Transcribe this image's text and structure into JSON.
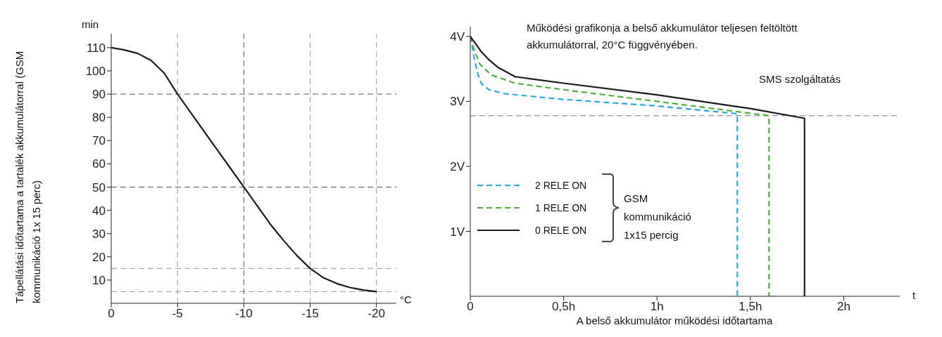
{
  "chart_data": [
    {
      "type": "line",
      "xlabel": "°C",
      "ylabel": "Tápellátási időtartama a tartalék akkumulátorral  (GSM kommunikáció 1x 15 perc)",
      "annotations": [
        "min"
      ],
      "x": [
        0,
        -1,
        -2,
        -3,
        -4,
        -5,
        -6,
        -7,
        -8,
        -9,
        -10,
        -11,
        -12,
        -13,
        -14,
        -15,
        -16,
        -17,
        -18,
        -19,
        -20
      ],
      "series": [
        {
          "color": "#1a1a1a",
          "values": [
            110,
            109,
            107.5,
            104.5,
            99,
            90,
            82,
            74,
            66,
            58,
            50,
            42,
            34,
            27,
            20.5,
            15,
            11,
            8.5,
            6.8,
            5.7,
            5
          ]
        }
      ],
      "xlim": [
        0,
        -21.5
      ],
      "xticks": [
        0,
        -5,
        -10,
        -15,
        -20
      ],
      "ylim": [
        0,
        116
      ],
      "yticks": [
        10,
        20,
        30,
        40,
        50,
        60,
        70,
        80,
        90,
        100,
        110
      ],
      "ref_lines": [
        {
          "axis": "y",
          "value": 90,
          "color": "#555555",
          "line_style": "dashed"
        },
        {
          "axis": "y",
          "value": 50,
          "color": "#555555",
          "line_style": "dashed"
        },
        {
          "axis": "y",
          "value": 15,
          "color": "#999999",
          "line_style": "dashed"
        },
        {
          "axis": "y",
          "value": 5,
          "color": "#999999",
          "line_style": "dashed"
        },
        {
          "axis": "x",
          "value": -5,
          "color": "#999999",
          "line_style": "dashed"
        },
        {
          "axis": "x",
          "value": -10,
          "color": "#555555",
          "line_style": "dashed"
        },
        {
          "axis": "x",
          "value": -15,
          "color": "#999999",
          "line_style": "dashed"
        },
        {
          "axis": "x",
          "value": -20,
          "color": "#999999",
          "line_style": "dashed"
        }
      ],
      "grid": false,
      "legend": false
    },
    {
      "type": "line",
      "title": "Működési grafikonja a belső akkumulátor teljesen feltöltött akkumulátorral, 20°C függvényében.",
      "xlabel": "A belső akkumulátor működési időtartama",
      "annotations": [
        "SMS szolgáltatás",
        "GSM kommunikáció 1x15 percig",
        "t"
      ],
      "series": [
        {
          "name": "2 RELE ON",
          "color": "#29a8e0",
          "line_style": "dashed",
          "x": [
            0,
            0.01,
            0.02,
            0.04,
            0.06,
            0.1,
            0.18,
            0.5,
            1,
            1.43,
            1.43
          ],
          "values": [
            4.0,
            3.85,
            3.68,
            3.42,
            3.27,
            3.18,
            3.12,
            3.03,
            2.93,
            2.81,
            0
          ]
        },
        {
          "name": "1 RELE ON",
          "color": "#4caf3a",
          "line_style": "dashed",
          "x": [
            0,
            0.02,
            0.05,
            0.11,
            0.24,
            0.5,
            1,
            1.6,
            1.6
          ],
          "values": [
            4.0,
            3.8,
            3.58,
            3.41,
            3.28,
            3.18,
            3.0,
            2.78,
            0
          ]
        },
        {
          "name": "0 RELE ON",
          "color": "#1a1a1a",
          "line_style": "solid",
          "x": [
            0,
            0.03,
            0.06,
            0.1,
            0.15,
            0.24,
            0.5,
            1,
            1.5,
            1.79,
            1.79
          ],
          "values": [
            4.0,
            3.88,
            3.76,
            3.64,
            3.52,
            3.38,
            3.28,
            3.1,
            2.89,
            2.74,
            0
          ]
        }
      ],
      "xlim": [
        0,
        2.3
      ],
      "xticks": [
        0,
        {
          "value": 0.5,
          "label": "0,5h"
        },
        {
          "value": 1,
          "label": "1h"
        },
        {
          "value": 1.5,
          "label": "1,5h"
        },
        {
          "value": 2,
          "label": "2h"
        }
      ],
      "ylim": [
        0,
        4.15
      ],
      "yticks": [
        {
          "value": 1,
          "label": "1V"
        },
        {
          "value": 2,
          "label": "2V"
        },
        {
          "value": 3,
          "label": "3V"
        },
        {
          "value": 4,
          "label": "4V"
        }
      ],
      "ref_lines": [
        {
          "axis": "y",
          "value": 2.78,
          "color": "#777777",
          "line_style": "dashed"
        }
      ],
      "grid": false,
      "legend": "bottom left"
    }
  ]
}
